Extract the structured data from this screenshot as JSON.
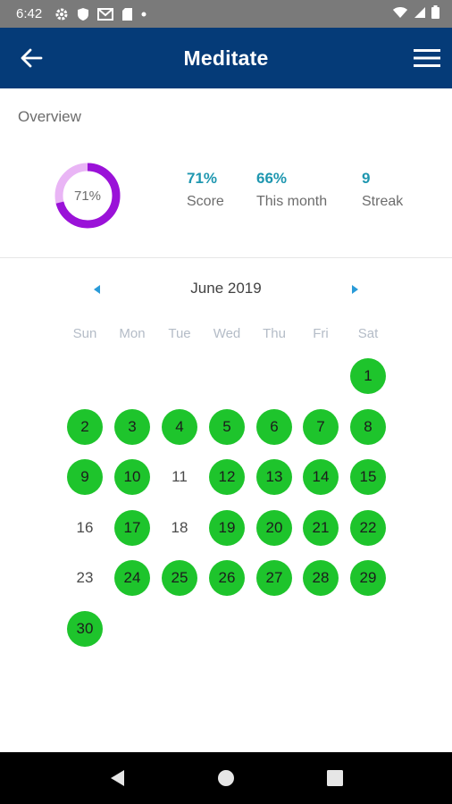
{
  "status_bar": {
    "time": "6:42",
    "left_icons": [
      "gear-icon",
      "shield-icon",
      "gmail-icon",
      "sd-card-icon",
      "dot-icon"
    ],
    "right_icons": [
      "wifi-icon",
      "signal-icon",
      "battery-icon"
    ]
  },
  "app_bar": {
    "title": "Meditate",
    "back_icon": "arrow-left-icon",
    "menu_icon": "hamburger-menu-icon",
    "color": "#053b78"
  },
  "overview": {
    "title": "Overview",
    "donut": {
      "label": "71%",
      "percent": 71,
      "color_fill": "#9a12d8",
      "color_track": "#e9b5f5"
    },
    "stats": [
      {
        "value": "71%",
        "label": "Score"
      },
      {
        "value": "66%",
        "label": "This month"
      },
      {
        "value": "9",
        "label": "Streak"
      }
    ],
    "accent": "#1f97b0"
  },
  "calendar": {
    "month": "June 2019",
    "prev_icon": "caret-left-icon",
    "next_icon": "caret-right-icon",
    "weekdays": [
      "Sun",
      "Mon",
      "Tue",
      "Wed",
      "Thu",
      "Fri",
      "Sat"
    ],
    "first_weekday_index": 6,
    "days_in_month": 30,
    "completed_days": [
      1,
      2,
      3,
      4,
      5,
      6,
      7,
      8,
      9,
      10,
      12,
      13,
      14,
      15,
      17,
      19,
      20,
      21,
      22,
      24,
      25,
      26,
      27,
      28,
      29,
      30
    ],
    "completed_color": "#1ec42c"
  },
  "nav_bar": {
    "icons": [
      "back-triangle-icon",
      "home-circle-icon",
      "recents-square-icon"
    ]
  }
}
